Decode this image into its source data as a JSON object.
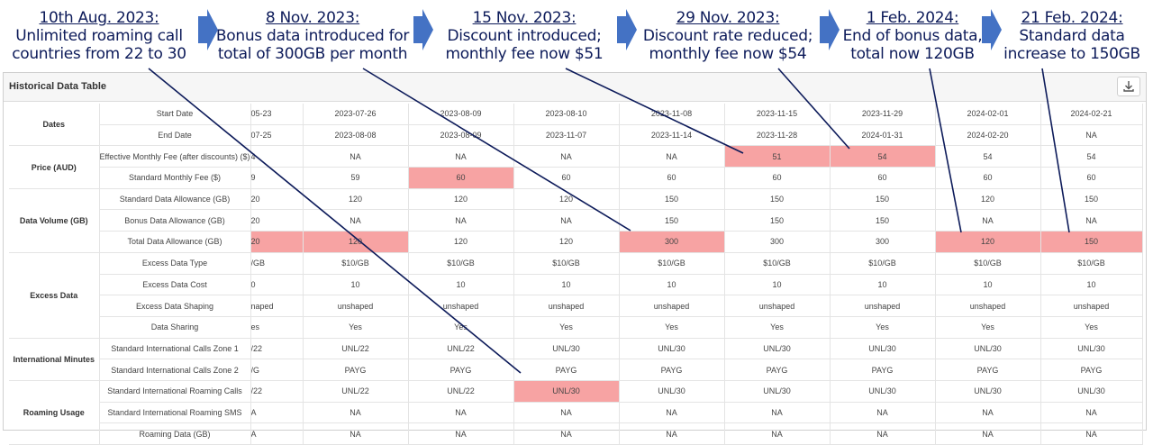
{
  "annotations": [
    {
      "date": "10th Aug. 2023:",
      "lines": [
        "Unlimited roaming call",
        "countries from 22 to 30"
      ]
    },
    {
      "date": "8 Nov. 2023:",
      "lines": [
        "Bonus data introduced for",
        "total of 300GB per month"
      ]
    },
    {
      "date": "15 Nov. 2023:",
      "lines": [
        "Discount introduced;",
        "monthly fee now $51"
      ]
    },
    {
      "date": "29 Nov. 2023:",
      "lines": [
        "Discount rate reduced;",
        "monthly fee now $54"
      ]
    },
    {
      "date": "1 Feb. 2024:",
      "lines": [
        "End of bonus data,",
        "total now 120GB"
      ]
    },
    {
      "date": "21 Feb. 2024:",
      "lines": [
        "Standard data",
        "increase to 150GB"
      ]
    }
  ],
  "panel": {
    "title": "Historical Data Table",
    "download_icon": "download-icon"
  },
  "colors": {
    "highlight": "#f7a3a3",
    "annotation": "#0d1b5a",
    "arrow": "#4472c4"
  },
  "table": {
    "groups": [
      {
        "name": "Dates",
        "rows": [
          {
            "label": "Start Date",
            "values": [
              "05-23",
              "2023-07-26",
              "2023-08-09",
              "2023-08-10",
              "2023-11-08",
              "2023-11-15",
              "2023-11-29",
              "2024-02-01",
              "2024-02-21"
            ]
          },
          {
            "label": "End Date",
            "values": [
              "07-25",
              "2023-08-08",
              "2023-08-09",
              "2023-11-07",
              "2023-11-14",
              "2023-11-28",
              "2024-01-31",
              "2024-02-20",
              "NA"
            ]
          }
        ]
      },
      {
        "name": "Price (AUD)",
        "rows": [
          {
            "label": "Effective Monthly Fee (after discounts) ($)",
            "values": [
              "4",
              "NA",
              "NA",
              "NA",
              "NA",
              "51",
              "54",
              "54",
              "54"
            ]
          },
          {
            "label": "Standard Monthly Fee ($)",
            "values": [
              "9",
              "59",
              "60",
              "60",
              "60",
              "60",
              "60",
              "60",
              "60"
            ]
          }
        ]
      },
      {
        "name": "Data Volume (GB)",
        "rows": [
          {
            "label": "Standard Data Allowance (GB)",
            "values": [
              "20",
              "120",
              "120",
              "120",
              "150",
              "150",
              "150",
              "120",
              "150"
            ]
          },
          {
            "label": "Bonus Data Allowance (GB)",
            "values": [
              "20",
              "NA",
              "NA",
              "NA",
              "150",
              "150",
              "150",
              "NA",
              "NA"
            ]
          },
          {
            "label": "Total Data Allowance (GB)",
            "values": [
              "20",
              "120",
              "120",
              "120",
              "300",
              "300",
              "300",
              "120",
              "150"
            ]
          }
        ]
      },
      {
        "name": "Excess Data",
        "rows": [
          {
            "label": "Excess Data Type",
            "values": [
              "/GB",
              "$10/GB",
              "$10/GB",
              "$10/GB",
              "$10/GB",
              "$10/GB",
              "$10/GB",
              "$10/GB",
              "$10/GB"
            ]
          },
          {
            "label": "Excess Data Cost",
            "values": [
              "0",
              "10",
              "10",
              "10",
              "10",
              "10",
              "10",
              "10",
              "10"
            ]
          },
          {
            "label": "Excess Data Shaping",
            "values": [
              "naped",
              "unshaped",
              "unshaped",
              "unshaped",
              "unshaped",
              "unshaped",
              "unshaped",
              "unshaped",
              "unshaped"
            ]
          },
          {
            "label": "Data Sharing",
            "values": [
              "es",
              "Yes",
              "Yes",
              "Yes",
              "Yes",
              "Yes",
              "Yes",
              "Yes",
              "Yes"
            ]
          }
        ]
      },
      {
        "name": "International Minutes",
        "rows": [
          {
            "label": "Standard International Calls Zone 1",
            "values": [
              "/22",
              "UNL/22",
              "UNL/22",
              "UNL/30",
              "UNL/30",
              "UNL/30",
              "UNL/30",
              "UNL/30",
              "UNL/30"
            ]
          },
          {
            "label": "Standard International Calls Zone 2",
            "values": [
              "/G",
              "PAYG",
              "PAYG",
              "PAYG",
              "PAYG",
              "PAYG",
              "PAYG",
              "PAYG",
              "PAYG"
            ]
          }
        ]
      },
      {
        "name": "Roaming Usage",
        "rows": [
          {
            "label": "Standard International Roaming Calls",
            "values": [
              "/22",
              "UNL/22",
              "UNL/22",
              "UNL/30",
              "UNL/30",
              "UNL/30",
              "UNL/30",
              "UNL/30",
              "UNL/30"
            ]
          },
          {
            "label": "Standard International Roaming SMS",
            "values": [
              "A",
              "NA",
              "NA",
              "NA",
              "NA",
              "NA",
              "NA",
              "NA",
              "NA"
            ]
          },
          {
            "label": "Roaming Data (GB)",
            "values": [
              "A",
              "NA",
              "NA",
              "NA",
              "NA",
              "NA",
              "NA",
              "NA",
              "NA"
            ]
          }
        ]
      }
    ],
    "highlights": [
      {
        "row": "Effective Monthly Fee (after discounts) ($)",
        "cols": [
          5,
          6
        ]
      },
      {
        "row": "Standard Monthly Fee ($)",
        "cols": [
          2
        ]
      },
      {
        "row": "Total Data Allowance (GB)",
        "cols": [
          0,
          1,
          4,
          7,
          8
        ]
      },
      {
        "row": "Standard International Roaming Calls",
        "cols": [
          3
        ]
      }
    ]
  }
}
